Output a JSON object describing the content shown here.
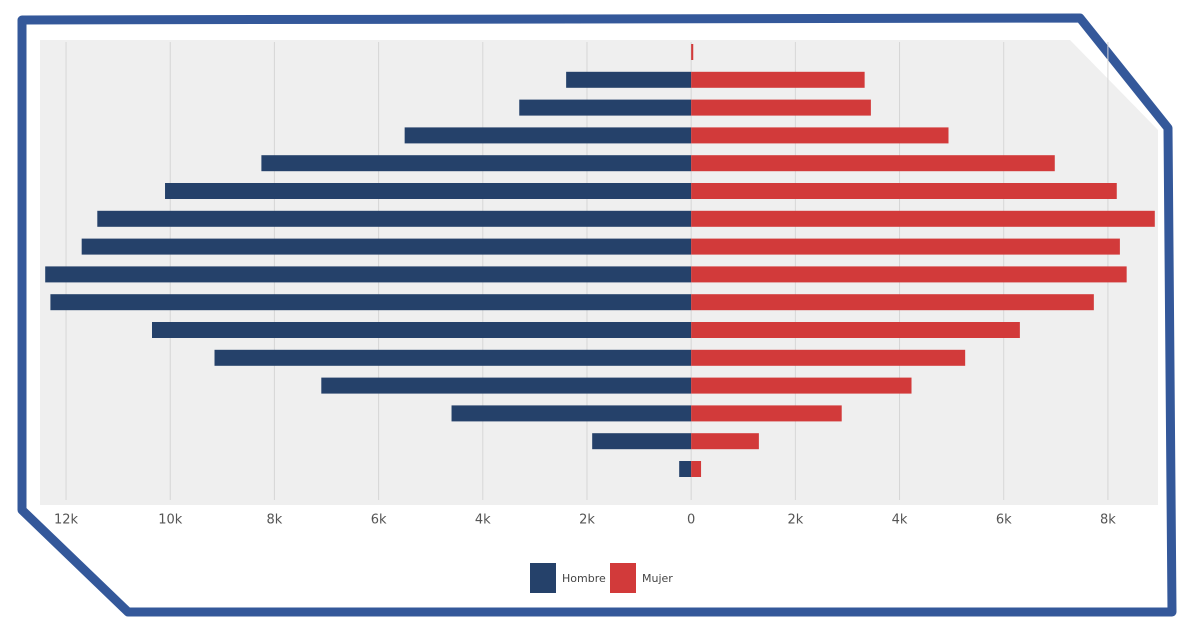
{
  "chart_data": {
    "type": "pyramid",
    "categories": [
      null,
      null,
      null,
      null,
      null,
      null,
      null,
      null,
      null,
      null,
      null,
      null,
      null,
      null,
      null,
      null
    ],
    "series": [
      {
        "name": "Hombre",
        "color": "#25416a",
        "values": [
          0,
          2400,
          3300,
          5500,
          8250,
          10100,
          11400,
          11700,
          12400,
          12300,
          10350,
          9150,
          7100,
          4600,
          1900,
          230
        ]
      },
      {
        "name": "Mujer",
        "color": "#d23a3a",
        "values": [
          40,
          3330,
          3450,
          4940,
          6980,
          8170,
          8900,
          8230,
          8360,
          7730,
          6310,
          5260,
          4230,
          2890,
          1300,
          190
        ]
      }
    ],
    "xlim": [
      -12500,
      9000
    ],
    "xticks": [
      {
        "value": -12000,
        "label": "12k"
      },
      {
        "value": -10000,
        "label": "10k"
      },
      {
        "value": -8000,
        "label": "8k"
      },
      {
        "value": -6000,
        "label": "6k"
      },
      {
        "value": -4000,
        "label": "4k"
      },
      {
        "value": -2000,
        "label": "2k"
      },
      0,
      {
        "value": 2000,
        "label": "2k"
      },
      {
        "value": 4000,
        "label": "4k"
      },
      {
        "value": 6000,
        "label": "6k"
      },
      {
        "value": 8000,
        "label": "8k"
      }
    ],
    "grid": true,
    "legend": "bottom"
  }
}
